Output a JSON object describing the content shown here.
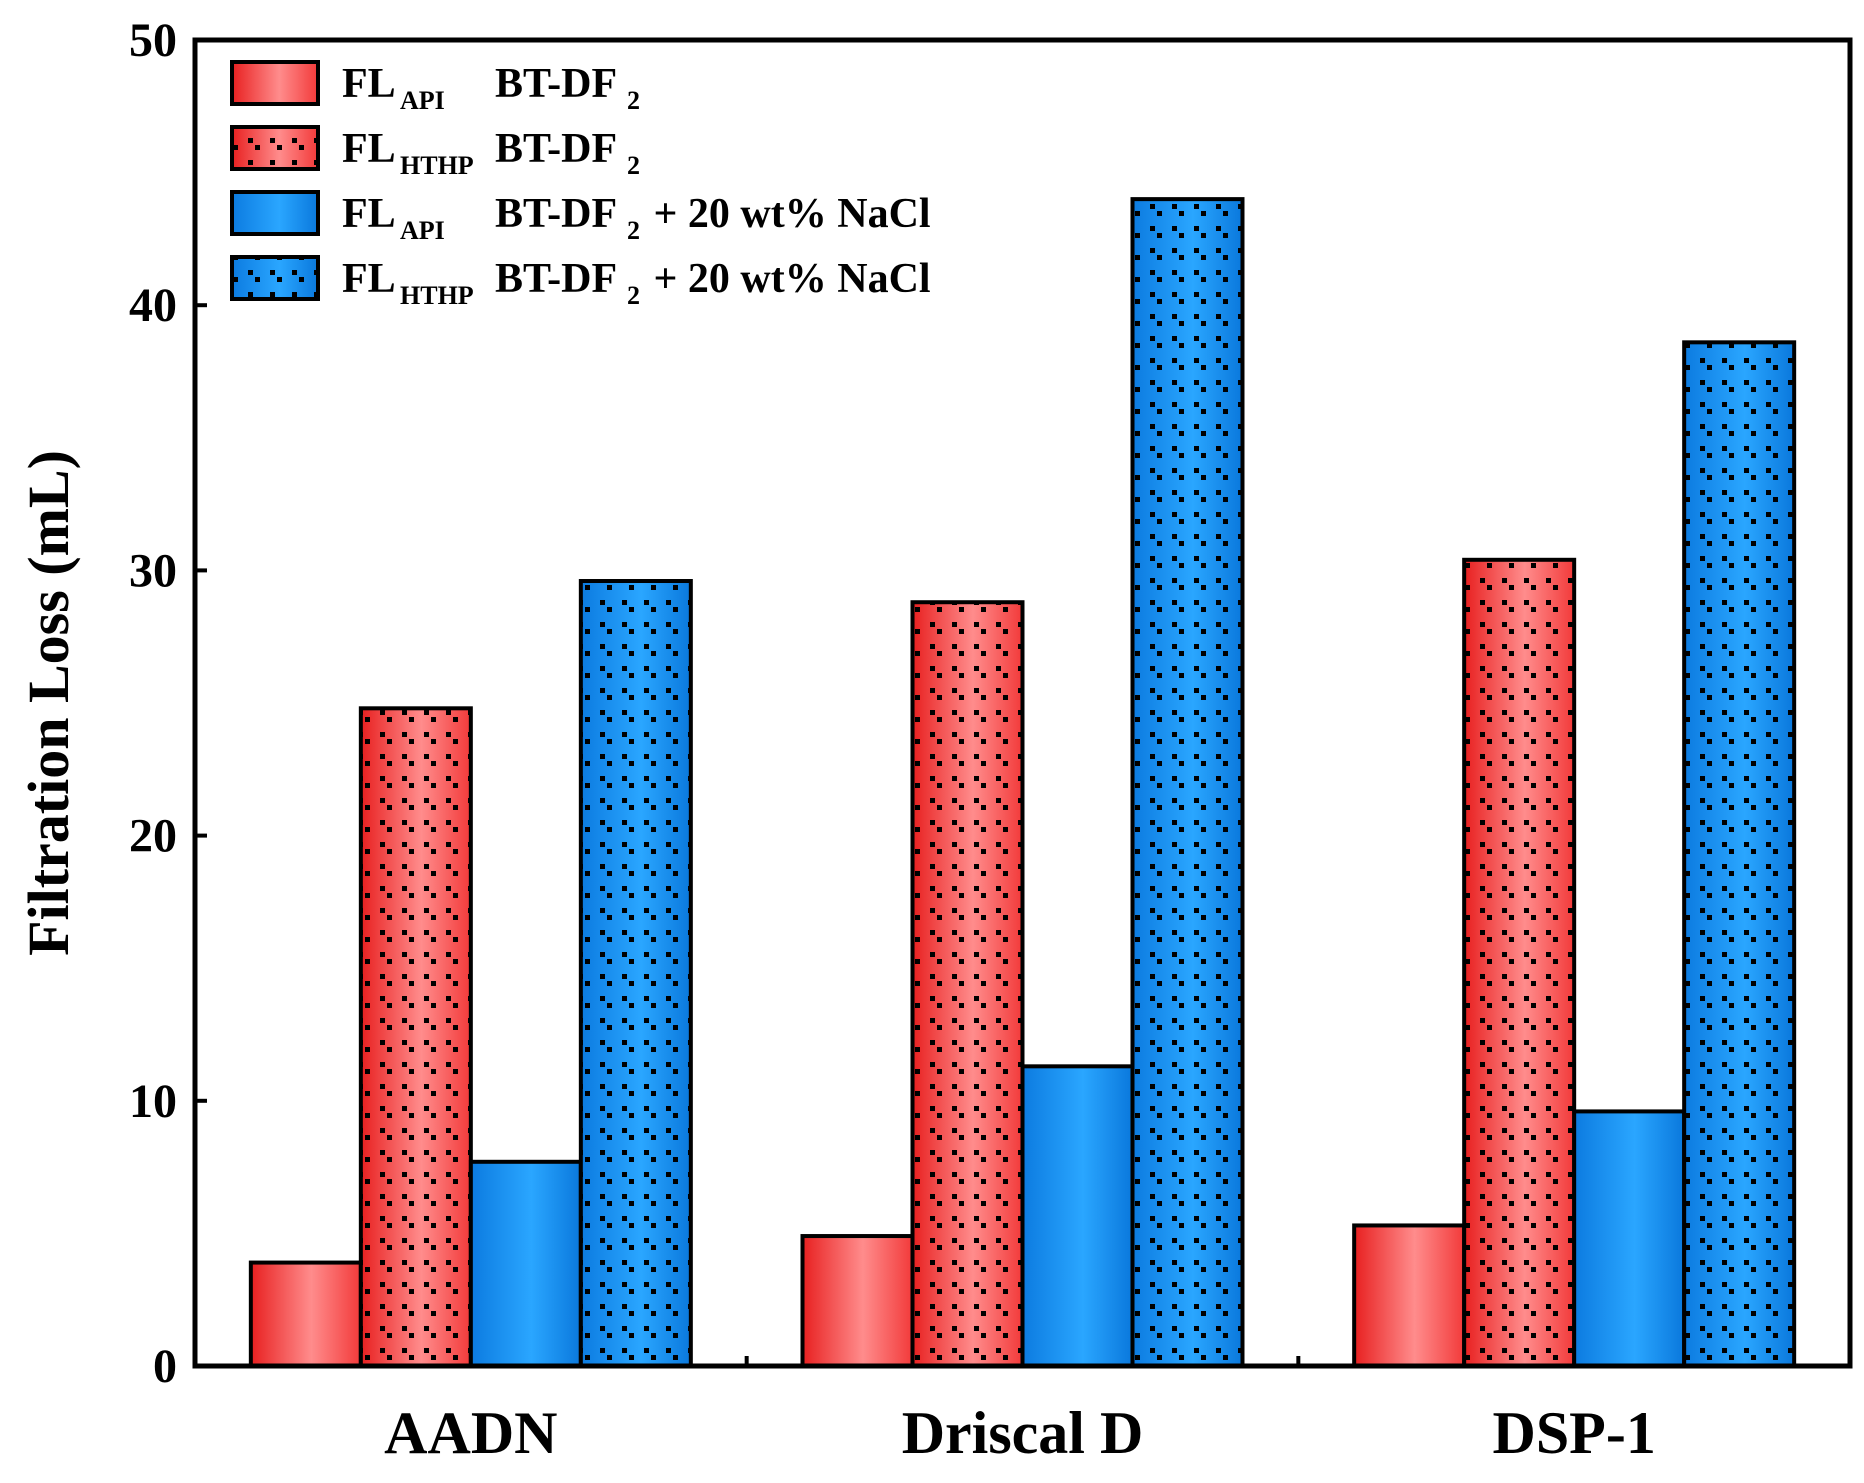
{
  "chart_data": {
    "type": "bar",
    "title": "",
    "xlabel": "",
    "ylabel": "Filtration Loss (mL)",
    "ylim": [
      0,
      50
    ],
    "yticks": [
      0,
      10,
      20,
      30,
      40,
      50
    ],
    "grid": false,
    "legend_position": "top-left",
    "categories": [
      "AADN",
      "Driscal D",
      "DSP-1"
    ],
    "series": [
      {
        "name": "FL_API BT-DF2",
        "label_main": "FL",
        "label_sub": "API",
        "label_rest": "BT-DF",
        "label_rest_sub": "2",
        "label_suffix": "",
        "color": "#ff5a5a",
        "pattern": "solid",
        "values": [
          3.9,
          4.9,
          5.3
        ]
      },
      {
        "name": "FL_HTHP BT-DF2",
        "label_main": "FL",
        "label_sub": "HTHP",
        "label_rest": "BT-DF",
        "label_rest_sub": "2",
        "label_suffix": "",
        "color": "#ff5a5a",
        "pattern": "dotted",
        "values": [
          24.8,
          28.8,
          30.4
        ]
      },
      {
        "name": "FL_API BT-DF2 + 20 wt% NaCl",
        "label_main": "FL",
        "label_sub": "API",
        "label_rest": "BT-DF",
        "label_rest_sub": "2",
        "label_suffix": " + 20 wt% NaCl",
        "color": "#1e8ff0",
        "pattern": "solid",
        "values": [
          7.7,
          11.3,
          9.6
        ]
      },
      {
        "name": "FL_HTHP BT-DF2 + 20 wt% NaCl",
        "label_main": "FL",
        "label_sub": "HTHP",
        "label_rest": "BT-DF",
        "label_rest_sub": "2",
        "label_suffix": " + 20 wt% NaCl",
        "color": "#1e8ff0",
        "pattern": "dotted",
        "values": [
          29.6,
          44.0,
          38.6
        ]
      }
    ]
  }
}
